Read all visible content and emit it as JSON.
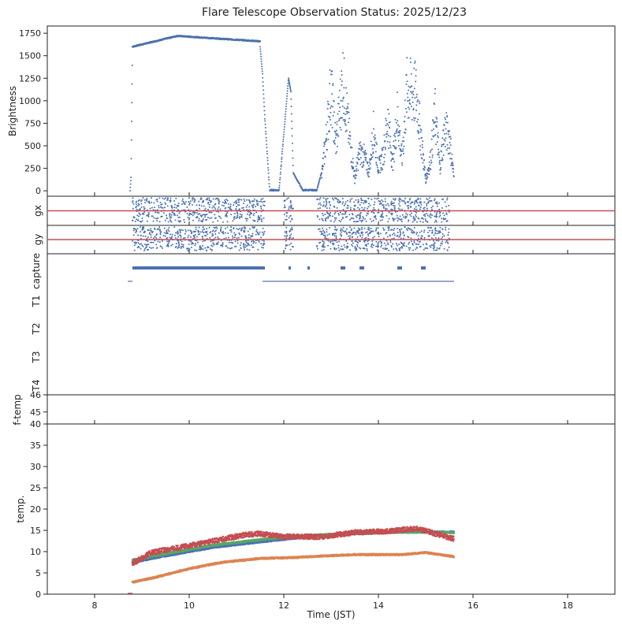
{
  "title": "Flare Telescope Observation Status: 2025/12/23",
  "x_axis": {
    "label": "Time (JST)",
    "range": [
      7,
      19
    ],
    "ticks": [
      "8",
      "10",
      "12",
      "14",
      "16",
      "18"
    ]
  },
  "colors": {
    "blue": "#4c72b0",
    "orange": "#dd8452",
    "green": "#55a868",
    "red": "#c44e52",
    "axis": "#222222"
  },
  "chart_data": [
    {
      "id": "brightness",
      "type": "scatter",
      "ylabel": "Brightness",
      "ylim": [
        -60,
        1830
      ],
      "ytick_labels": [
        "0",
        "250",
        "500",
        "750",
        "1000",
        "1250",
        "1500",
        "1750"
      ],
      "series": [
        {
          "name": "brightness",
          "color": "#4c72b0",
          "points": [
            [
              8.75,
              0
            ],
            [
              8.77,
              150
            ],
            [
              8.8,
              1600
            ],
            [
              9.0,
              1630
            ],
            [
              9.25,
              1670
            ],
            [
              9.5,
              1700
            ],
            [
              9.75,
              1720
            ],
            [
              10.0,
              1720
            ],
            [
              10.25,
              1700
            ],
            [
              10.5,
              1690
            ],
            [
              10.75,
              1680
            ],
            [
              11.0,
              1680
            ],
            [
              11.25,
              1670
            ],
            [
              11.4,
              1660
            ],
            [
              11.5,
              1600
            ],
            [
              11.55,
              1300
            ],
            [
              11.6,
              800
            ],
            [
              11.65,
              400
            ],
            [
              11.7,
              0
            ],
            [
              11.9,
              0
            ],
            [
              12.1,
              1250
            ],
            [
              12.15,
              1100
            ],
            [
              12.2,
              200
            ],
            [
              12.4,
              0
            ],
            [
              12.7,
              0
            ],
            [
              12.8,
              200
            ],
            [
              12.9,
              700
            ],
            [
              13.0,
              1350
            ],
            [
              13.1,
              600
            ],
            [
              13.25,
              1450
            ],
            [
              13.35,
              900
            ],
            [
              13.5,
              150
            ],
            [
              13.6,
              500
            ],
            [
              13.7,
              450
            ],
            [
              13.8,
              250
            ],
            [
              13.9,
              800
            ],
            [
              14.0,
              300
            ],
            [
              14.1,
              450
            ],
            [
              14.2,
              950
            ],
            [
              14.3,
              350
            ],
            [
              14.4,
              1000
            ],
            [
              14.5,
              400
            ],
            [
              14.6,
              1300
            ],
            [
              14.7,
              1280
            ],
            [
              14.8,
              1250
            ],
            [
              14.9,
              700
            ],
            [
              15.0,
              150
            ],
            [
              15.1,
              400
            ],
            [
              15.2,
              1000
            ],
            [
              15.3,
              300
            ],
            [
              15.4,
              800
            ],
            [
              15.5,
              700
            ],
            [
              15.6,
              150
            ]
          ]
        }
      ]
    },
    {
      "id": "gx",
      "type": "scatter",
      "ylabel": "gx",
      "reference_line": {
        "color": "#c44e52",
        "value": 0
      },
      "series": [
        {
          "name": "gx",
          "color": "#4c72b0",
          "segments": [
            [
              8.8,
              11.6
            ],
            [
              12.0,
              12.2
            ],
            [
              12.7,
              15.5
            ]
          ]
        }
      ]
    },
    {
      "id": "gy",
      "type": "scatter",
      "ylabel": "gy",
      "reference_line": {
        "color": "#c44e52",
        "value": 0
      },
      "series": [
        {
          "name": "gy",
          "color": "#4c72b0",
          "segments": [
            [
              8.8,
              11.6
            ],
            [
              12.0,
              12.2
            ],
            [
              12.7,
              15.5
            ]
          ]
        }
      ]
    },
    {
      "id": "status",
      "type": "table",
      "row_labels": [
        "capture",
        "T1",
        "T2",
        "T3",
        "T4"
      ],
      "bars": [
        {
          "row": "capture",
          "start": 8.8,
          "end": 11.6,
          "style": "thick"
        },
        {
          "row": "capture",
          "start": 12.1,
          "end": 12.15,
          "style": "thick"
        },
        {
          "row": "capture",
          "start": 12.5,
          "end": 12.55,
          "style": "thick"
        },
        {
          "row": "capture",
          "start": 13.2,
          "end": 13.3,
          "style": "thick"
        },
        {
          "row": "capture",
          "start": 13.6,
          "end": 13.7,
          "style": "thick"
        },
        {
          "row": "capture",
          "start": 14.4,
          "end": 14.5,
          "style": "thick"
        },
        {
          "row": "capture",
          "start": 14.9,
          "end": 15.0,
          "style": "thick"
        },
        {
          "row": "thin",
          "start": 8.7,
          "end": 8.8,
          "style": "thin"
        },
        {
          "row": "thin",
          "start": 11.55,
          "end": 15.6,
          "style": "thin"
        }
      ]
    },
    {
      "id": "f-temp",
      "type": "line",
      "ylabel": "f-temp",
      "ylim": [
        44.3,
        46
      ],
      "ytick_labels": [
        "45",
        "46"
      ]
    },
    {
      "id": "temp",
      "type": "line",
      "ylabel": "temp.",
      "ylim": [
        0,
        40
      ],
      "ytick_labels": [
        "0",
        "5",
        "10",
        "15",
        "20",
        "25",
        "30",
        "35",
        "40"
      ],
      "series": [
        {
          "name": "blue",
          "color": "#4c72b0",
          "points": [
            [
              8.8,
              7.5
            ],
            [
              9.5,
              9
            ],
            [
              10.5,
              11
            ],
            [
              11.5,
              12.3
            ],
            [
              12.5,
              13.5
            ],
            [
              13.5,
              14.2
            ],
            [
              14.5,
              14.6
            ],
            [
              15.6,
              14.6
            ]
          ]
        },
        {
          "name": "green",
          "color": "#55a868",
          "points": [
            [
              8.8,
              8
            ],
            [
              9.5,
              9.5
            ],
            [
              10.5,
              11.5
            ],
            [
              11.5,
              12.8
            ],
            [
              12.5,
              13.8
            ],
            [
              13.5,
              14.3
            ],
            [
              14.5,
              14.6
            ],
            [
              15.6,
              14.5
            ]
          ]
        },
        {
          "name": "red",
          "color": "#c44e52",
          "points": [
            [
              8.8,
              7.2
            ],
            [
              9.2,
              9.8
            ],
            [
              9.8,
              11
            ],
            [
              10.5,
              12.5
            ],
            [
              11.2,
              14
            ],
            [
              11.5,
              14.2
            ],
            [
              12.0,
              13.5
            ],
            [
              12.8,
              13.5
            ],
            [
              13.5,
              14.5
            ],
            [
              14.2,
              14.8
            ],
            [
              14.8,
              15.5
            ],
            [
              15.2,
              14.2
            ],
            [
              15.6,
              13
            ]
          ]
        },
        {
          "name": "orange",
          "color": "#dd8452",
          "points": [
            [
              8.8,
              2.8
            ],
            [
              9.3,
              4
            ],
            [
              10,
              6
            ],
            [
              10.7,
              7.5
            ],
            [
              11.5,
              8.4
            ],
            [
              12.2,
              8.6
            ],
            [
              12.5,
              8.8
            ],
            [
              13.5,
              9.3
            ],
            [
              14.5,
              9.3
            ],
            [
              15.0,
              9.8
            ],
            [
              15.6,
              8.8
            ]
          ]
        }
      ]
    }
  ]
}
